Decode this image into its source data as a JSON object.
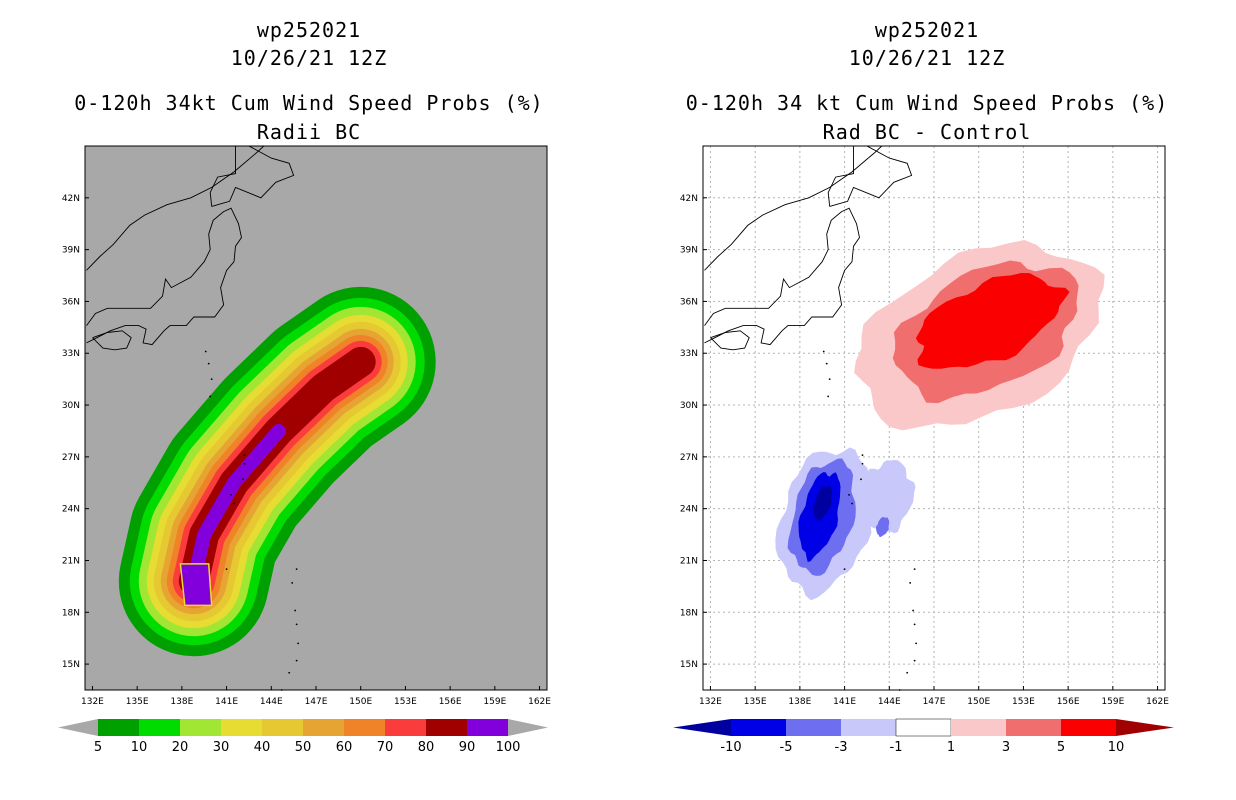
{
  "chart_data": [
    {
      "type": "contour-map",
      "storm_id": "wp252021",
      "datetime": "10/26/21 12Z",
      "title": "0-120h 34kt Cum Wind Speed Probs (%)",
      "subtitle": "Radii BC",
      "x_ticks": [
        "132E",
        "135E",
        "138E",
        "141E",
        "144E",
        "147E",
        "150E",
        "153E",
        "156E",
        "159E",
        "162E"
      ],
      "y_ticks": [
        "15N",
        "18N",
        "21N",
        "24N",
        "27N",
        "30N",
        "33N",
        "36N",
        "39N",
        "42N"
      ],
      "lon_range": [
        131.5,
        162.5
      ],
      "lat_range": [
        13.5,
        45
      ],
      "track": [
        [
          138.8,
          19.8
        ],
        [
          139.5,
          22.5
        ],
        [
          141.5,
          25.5
        ],
        [
          144.5,
          28.5
        ],
        [
          147.5,
          31.0
        ],
        [
          150.0,
          32.5
        ]
      ],
      "levels": [
        5,
        10,
        20,
        30,
        40,
        50,
        60,
        70,
        80,
        90,
        100
      ],
      "colors": [
        "#00a000",
        "#00dc00",
        "#a0e632",
        "#e6dc32",
        "#e6c832",
        "#e6a532",
        "#f08228",
        "#fa3c3c",
        "#a00000",
        "#8200dc"
      ],
      "background": "#a8a8a8"
    },
    {
      "type": "contour-map",
      "storm_id": "wp252021",
      "datetime": "10/26/21 12Z",
      "title": "0-120h 34 kt Cum Wind Speed Probs (%)",
      "subtitle": "Rad BC - Control",
      "x_ticks": [
        "132E",
        "135E",
        "138E",
        "141E",
        "144E",
        "147E",
        "150E",
        "153E",
        "156E",
        "159E",
        "162E"
      ],
      "y_ticks": [
        "15N",
        "18N",
        "21N",
        "24N",
        "27N",
        "30N",
        "33N",
        "36N",
        "39N",
        "42N"
      ],
      "lon_range": [
        131.5,
        162.5
      ],
      "lat_range": [
        13.5,
        45
      ],
      "levels": [
        "-10",
        "-5",
        "-3",
        "-1",
        "1",
        "3",
        "5",
        "10"
      ],
      "colors": [
        "#0000a0",
        "#0000e6",
        "#6e6ef0",
        "#c8c8fa",
        "#ffffff",
        "#fac8c8",
        "#f06e6e",
        "#fa0000",
        "#a00000"
      ],
      "positive_center": [
        150.0,
        34.0
      ],
      "negative_center": [
        139.0,
        24.0
      ],
      "background": "#ffffff"
    }
  ]
}
